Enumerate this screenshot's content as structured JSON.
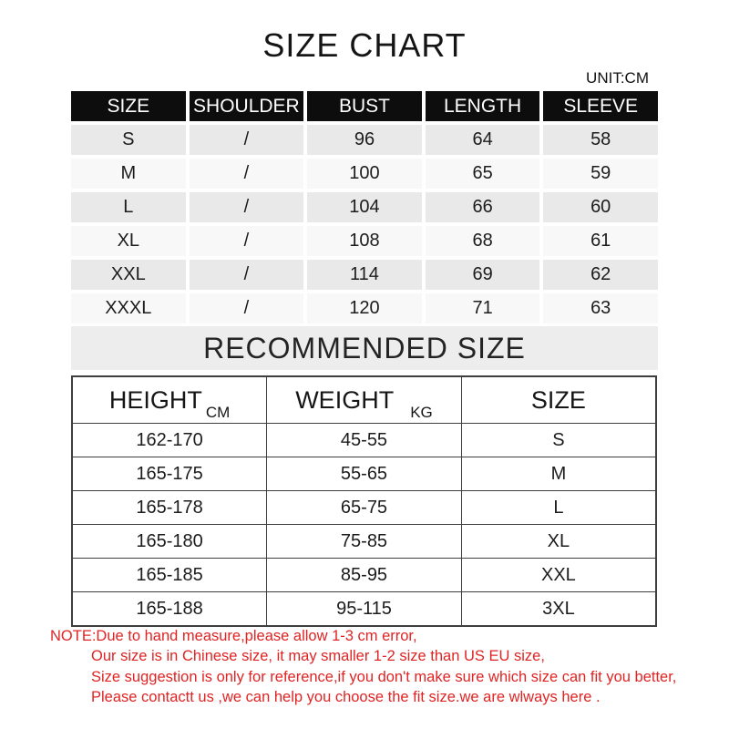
{
  "title": "SIZE CHART",
  "unit_label": "UNIT:CM",
  "recommended_heading": "RECOMMENDED SIZE",
  "rec_headers": [
    {
      "label": "HEIGHT",
      "unit": "CM"
    },
    {
      "label": "WEIGHT",
      "unit": "KG"
    },
    {
      "label": "SIZE",
      "unit": ""
    }
  ],
  "note_lines": [
    "NOTE:Due to hand measure,please allow 1-3 cm error,",
    "Our size is in Chinese size, it may smaller 1-2 size than US EU size,",
    "Size suggestion is only for reference,if you don't make sure which size can fit you better,",
    "Please contactt us ,we can help you choose the fit size.we are wlways here ."
  ],
  "colors": {
    "note_red": "#e02424",
    "header_cell_bg": "#0d0d0d",
    "row_gray": "#e9e9e9",
    "row_light": "#f8f8f8",
    "band_bg": "#ededed",
    "table_border": "#3e3e3e"
  },
  "chart_data": [
    {
      "type": "table",
      "title": "SIZE CHART",
      "unit": "CM",
      "columns": [
        "SIZE",
        "SHOULDER",
        "BUST",
        "LENGTH",
        "SLEEVE"
      ],
      "rows": [
        [
          "S",
          "/",
          "96",
          "64",
          "58"
        ],
        [
          "M",
          "/",
          "100",
          "65",
          "59"
        ],
        [
          "L",
          "/",
          "104",
          "66",
          "60"
        ],
        [
          "XL",
          "/",
          "108",
          "68",
          "61"
        ],
        [
          "XXL",
          "/",
          "114",
          "69",
          "62"
        ],
        [
          "XXXL",
          "/",
          "120",
          "71",
          "63"
        ]
      ]
    },
    {
      "type": "table",
      "title": "RECOMMENDED SIZE",
      "columns": [
        "HEIGHT CM",
        "WEIGHT KG",
        "SIZE"
      ],
      "rows": [
        [
          "162-170",
          "45-55",
          "S"
        ],
        [
          "165-175",
          "55-65",
          "M"
        ],
        [
          "165-178",
          "65-75",
          "L"
        ],
        [
          "165-180",
          "75-85",
          "XL"
        ],
        [
          "165-185",
          "85-95",
          "XXL"
        ],
        [
          "165-188",
          "95-115",
          "3XL"
        ]
      ]
    }
  ]
}
